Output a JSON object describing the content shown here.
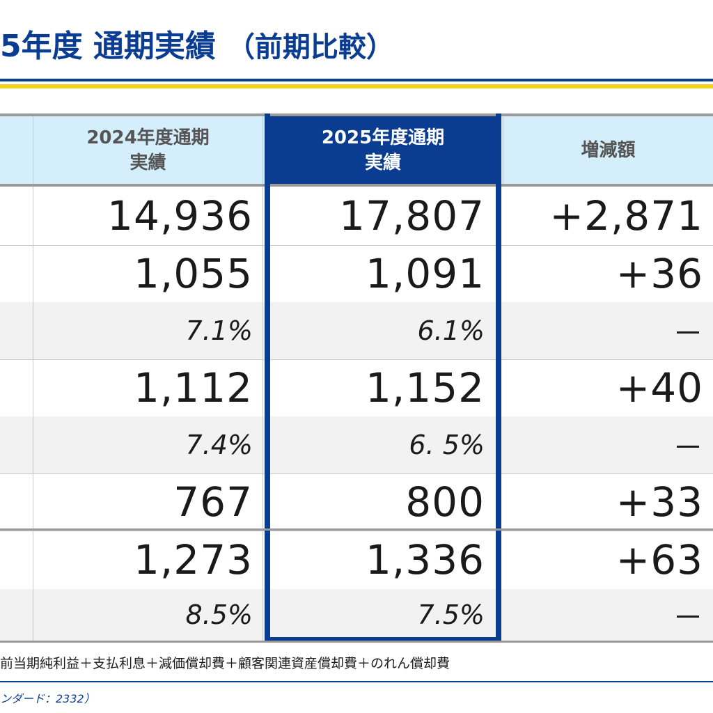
{
  "title": {
    "main": "5年度  通期実績",
    "sub": "（前期比較）"
  },
  "table": {
    "headers": [
      "2024年度通期\n実績",
      "2025年度通期\n実績",
      "増減額"
    ],
    "rows": [
      {
        "v2024": "14,936",
        "v2025": "17,807",
        "diff": "+2,871",
        "type": "big"
      },
      {
        "v2024": "1,055",
        "v2025": "1,091",
        "diff": "+36",
        "type": "big"
      },
      {
        "v2024": "7.1%",
        "v2025": "6.1%",
        "diff": "－",
        "type": "pct"
      },
      {
        "v2024": "1,112",
        "v2025": "1,152",
        "diff": "+40",
        "type": "big"
      },
      {
        "v2024": "7.4%",
        "v2025": "6. 5%",
        "diff": "－",
        "type": "pct"
      },
      {
        "v2024": "767",
        "v2025": "800",
        "diff": "+33",
        "type": "big"
      },
      {
        "v2024": "1,273",
        "v2025": "1,336",
        "diff": "+63",
        "type": "big"
      },
      {
        "v2024": "8.5%",
        "v2025": "7.5%",
        "diff": "－",
        "type": "pct"
      }
    ]
  },
  "footnote": "前当期純利益＋支払利息＋減価償却費＋顧客関連資産償却費＋のれん償却費",
  "source": "ンダード：2332）",
  "colors": {
    "brand_blue": "#0a3d91",
    "accent_yellow": "#f5d21a",
    "header_bg": "#d4eefb"
  }
}
